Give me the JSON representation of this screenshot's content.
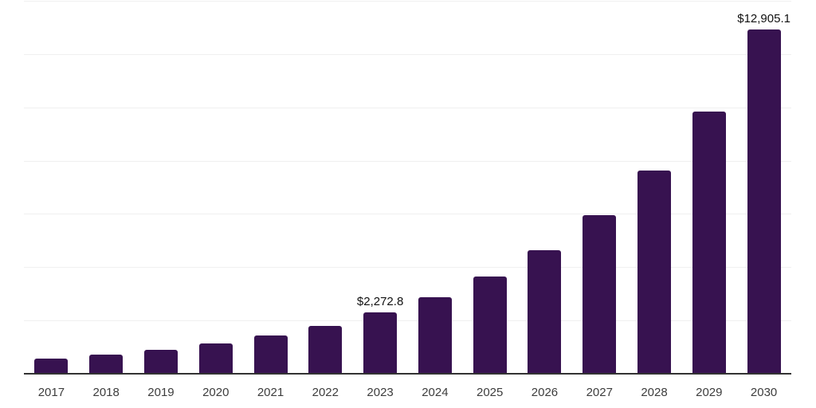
{
  "chart_data": {
    "type": "bar",
    "title": "",
    "xlabel": "",
    "ylabel": "",
    "categories": [
      "2017",
      "2018",
      "2019",
      "2020",
      "2021",
      "2022",
      "2023",
      "2024",
      "2025",
      "2026",
      "2027",
      "2028",
      "2029",
      "2030"
    ],
    "values": [
      540,
      690,
      870,
      1110,
      1400,
      1770,
      2272.8,
      2840,
      3620,
      4600,
      5920,
      7600,
      9810,
      12905.1
    ],
    "data_labels": [
      {
        "category": "2023",
        "text": "$2,272.8"
      },
      {
        "category": "2030",
        "text": "$12,905.1"
      }
    ],
    "ylim": [
      0,
      14000
    ],
    "gridline_step": 2000,
    "grid": true,
    "legend_position": "none",
    "y_axis_labels_visible": false,
    "colors": {
      "bar": "#371250",
      "axis_line": "#333333",
      "gridline": "#f0f0f0",
      "data_label": "#111111",
      "tick_label": "#3d3d3d",
      "background": "#ffffff"
    }
  }
}
